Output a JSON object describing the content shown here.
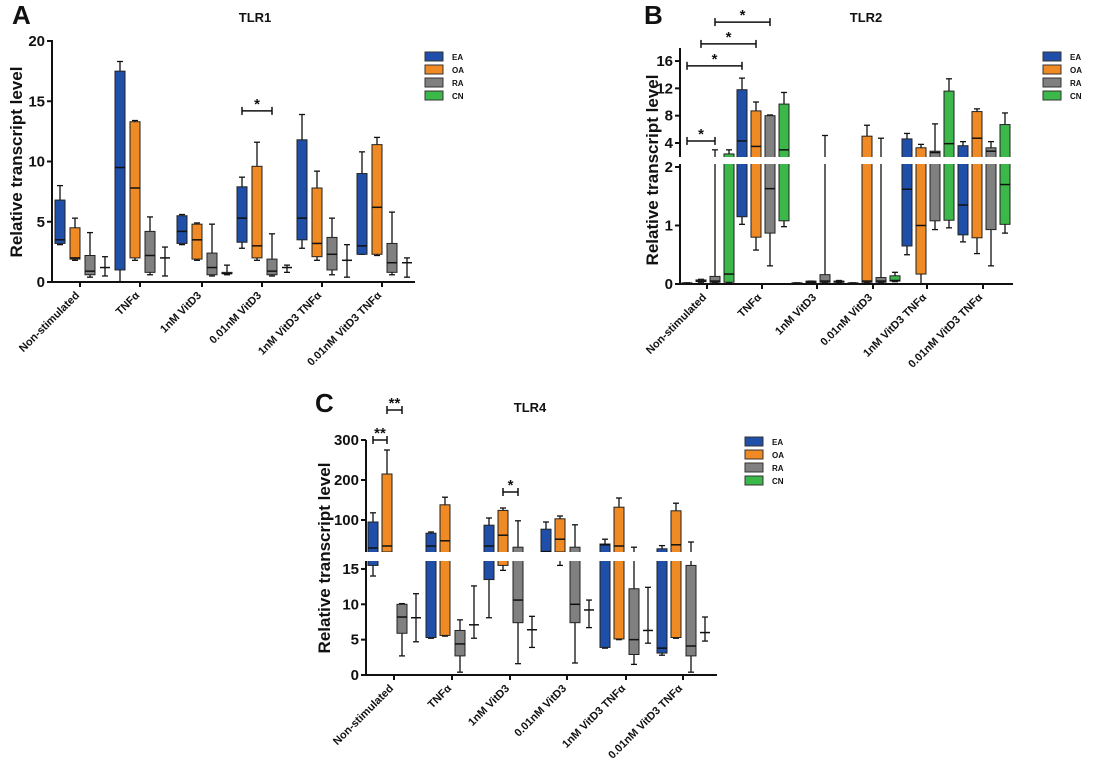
{
  "colors": {
    "EA": "#1f4fa8",
    "OA": "#f08a24",
    "RA": "#808080",
    "CN": "#3cb84a"
  },
  "chart_data": [
    {
      "panel": "A",
      "type": "box",
      "title": "TLR1",
      "ylabel": "Relative transcript level",
      "xlabel": "",
      "ylim": [
        0,
        20
      ],
      "yticks": [
        0,
        5,
        10,
        15,
        20
      ],
      "categories": [
        "Non-stimulated",
        "TNFα",
        "1nM VitD3",
        "0.01nM VitD3",
        "1nM VitD3 TNFα",
        "0.01nM VitD3 TNFα"
      ],
      "legend": [
        "EA",
        "OA",
        "RA",
        "CN"
      ],
      "legend_position": "top-right",
      "box_format": [
        "min",
        "q1",
        "median",
        "q3",
        "max"
      ],
      "series": [
        {
          "name": "EA",
          "values": [
            [
              3.1,
              3.2,
              3.5,
              6.8,
              8
            ],
            [
              0,
              1,
              9.5,
              17.5,
              18.3
            ],
            [
              3.1,
              3.2,
              4.2,
              5.5,
              5.6
            ],
            [
              2.8,
              3.3,
              5.3,
              7.9,
              8.7
            ],
            [
              2.8,
              3.5,
              5.3,
              11.8,
              13.9
            ],
            [
              2.3,
              2.3,
              3,
              9,
              10.8
            ]
          ]
        },
        {
          "name": "OA",
          "values": [
            [
              1.8,
              1.9,
              2,
              4.5,
              5.3
            ],
            [
              1.8,
              2,
              7.8,
              13.3,
              13.4
            ],
            [
              1.8,
              1.9,
              3.5,
              4.8,
              4.9
            ],
            [
              1.8,
              2,
              3,
              9.6,
              11.6
            ],
            [
              1.8,
              2.1,
              3.2,
              7.8,
              9.2
            ],
            [
              2.2,
              2.3,
              6.2,
              11.4,
              12
            ]
          ]
        },
        {
          "name": "RA",
          "values": [
            [
              0.4,
              0.6,
              0.9,
              2.2,
              4.1
            ],
            [
              0.6,
              0.8,
              2.2,
              4.2,
              5.4
            ],
            [
              0.5,
              0.6,
              1.2,
              2.4,
              4.8
            ],
            [
              0.5,
              0.6,
              0.9,
              1.9,
              4
            ],
            [
              0.6,
              1,
              2.3,
              3.7,
              5.3
            ],
            [
              0.6,
              0.8,
              1.6,
              3.2,
              5.8
            ]
          ]
        },
        {
          "name": "CN",
          "values": [
            [
              0.5,
              1.2,
              1.2,
              1.2,
              2.1
            ],
            [
              0.5,
              2,
              2,
              2,
              2.9
            ],
            [
              0.6,
              0.7,
              0.7,
              0.8,
              1.4
            ],
            [
              0.8,
              1.2,
              1.2,
              1.2,
              1.4
            ],
            [
              0.4,
              1.8,
              1.8,
              1.8,
              3.1
            ],
            [
              0.4,
              1.6,
              1.6,
              1.6,
              2
            ]
          ]
        }
      ],
      "significance": [
        {
          "from": [
            "0.01nM VitD3",
            "EA"
          ],
          "to": [
            "0.01nM VitD3",
            "RA"
          ],
          "level": 14.2,
          "label": "*"
        }
      ]
    },
    {
      "panel": "B",
      "type": "box",
      "title": "TLR2",
      "ylabel": "Relative transcript level",
      "xlabel": "",
      "ylim": [
        0,
        18
      ],
      "y_break": [
        2,
        2.3
      ],
      "yticks": [
        0,
        1,
        2,
        4,
        8,
        12,
        16
      ],
      "categories": [
        "Non-stimulated",
        "TNFα",
        "1nM VitD3",
        "0.01nM VitD3",
        "1nM VitD3 TNFα",
        "0.01nM VitD3 TNFα"
      ],
      "legend": [
        "EA",
        "OA",
        "RA",
        "CN"
      ],
      "legend_position": "top-right",
      "box_format": [
        "min",
        "q1",
        "median",
        "q3",
        "max"
      ],
      "series": [
        {
          "name": "EA",
          "values": [
            [
              0,
              0,
              0.01,
              0.02,
              0.02
            ],
            [
              1.02,
              1.15,
              4.3,
              11.8,
              13.5
            ],
            [
              0,
              0,
              0.01,
              0.02,
              0.02
            ],
            [
              0,
              0,
              0.01,
              0.02,
              0.02
            ],
            [
              0.5,
              0.65,
              1.62,
              4.6,
              5.4
            ],
            [
              0.72,
              0.84,
              1.35,
              3.6,
              4.2
            ]
          ]
        },
        {
          "name": "OA",
          "values": [
            [
              0.03,
              0.04,
              0.05,
              0.07,
              0.08
            ],
            [
              0.58,
              0.8,
              3.5,
              8.7,
              10
            ],
            [
              0.01,
              0.02,
              0.03,
              0.05,
              0.05
            ],
            [
              0.02,
              0.03,
              0.05,
              5,
              6.6
            ],
            [
              0,
              0.17,
              1,
              3.3,
              3.8
            ],
            [
              0.52,
              0.79,
              4.7,
              8.6,
              9
            ]
          ]
        },
        {
          "name": "RA",
          "values": [
            [
              0.02,
              0.03,
              0.05,
              0.13,
              3
            ],
            [
              0.31,
              0.87,
              1.63,
              8,
              8.1
            ],
            [
              0.02,
              0.03,
              0.05,
              0.16,
              5.1
            ],
            [
              0.02,
              0.03,
              0.05,
              0.11,
              4.7
            ],
            [
              0.93,
              1.08,
              2.6,
              2.8,
              6.8
            ],
            [
              0.31,
              0.93,
              2.8,
              3.3,
              4.2
            ]
          ]
        },
        {
          "name": "CN",
          "values": [
            [
              0.02,
              0.03,
              0.17,
              2.4,
              3
            ],
            [
              0.98,
              1.08,
              3,
              9.7,
              11.4
            ],
            [
              0.02,
              0.03,
              0.04,
              0.05,
              0.06
            ],
            [
              0.04,
              0.05,
              0.06,
              0.14,
              0.2
            ],
            [
              0.96,
              1.09,
              3.9,
              11.6,
              13.4
            ],
            [
              0.87,
              1.02,
              1.7,
              6.7,
              8.4
            ]
          ]
        }
      ],
      "significance": [
        {
          "from": [
            "Non-stimulated",
            "EA"
          ],
          "to": [
            "Non-stimulated",
            "RA"
          ],
          "level": 4.3,
          "label": "*"
        },
        {
          "from": [
            "Non-stimulated",
            "EA"
          ],
          "to": [
            "TNFα",
            "EA"
          ],
          "level": 15.3,
          "label": "*"
        },
        {
          "from": [
            "Non-stimulated",
            "OA"
          ],
          "to": [
            "TNFα",
            "OA"
          ],
          "level": 18.5,
          "label": "*"
        },
        {
          "from": [
            "Non-stimulated",
            "RA"
          ],
          "to": [
            "TNFα",
            "RA"
          ],
          "level": 21.7,
          "label": "*"
        }
      ]
    },
    {
      "panel": "C",
      "type": "box",
      "title": "TLR4",
      "ylabel": "Relative transcript level",
      "xlabel": "",
      "ylim": [
        0,
        300
      ],
      "y_break": [
        16.5,
        20
      ],
      "yticks": [
        0,
        5,
        10,
        15,
        100,
        200,
        300
      ],
      "categories": [
        "Non-stimulated",
        "TNFα",
        "1nM VitD3",
        "0.01nM VitD3",
        "1nM VitD3 TNFα",
        "0.01nM VitD3 TNFα"
      ],
      "legend": [
        "EA",
        "OA",
        "RA",
        "CN"
      ],
      "legend_position": "top-right",
      "box_format": [
        "min",
        "q1",
        "median",
        "q3",
        "max"
      ],
      "series": [
        {
          "name": "EA",
          "values": [
            [
              14,
              15.5,
              30,
              95,
              118
            ],
            [
              5.2,
              5.3,
              35,
              67,
              70
            ],
            [
              8.1,
              13.5,
              35,
              87,
              105
            ],
            [
              20,
              20,
              21,
              77,
              95
            ],
            [
              3.8,
              3.9,
              38,
              40,
              52
            ],
            [
              2.8,
              3.1,
              3.8,
              28,
              36
            ]
          ]
        },
        {
          "name": "OA",
          "values": [
            [
              20,
              20,
              35,
              215,
              275
            ],
            [
              5.5,
              5.6,
              48,
              138,
              157
            ],
            [
              14.8,
              15.5,
              62,
              124,
              130
            ],
            [
              15.5,
              20,
              52,
              103,
              110
            ],
            [
              5,
              5.1,
              35,
              132,
              155
            ],
            [
              5.2,
              5.3,
              38,
              123,
              142
            ]
          ]
        },
        {
          "name": "RA",
          "values": [
            [
              2.7,
              5.9,
              8.2,
              10,
              10.1
            ],
            [
              0.4,
              2.7,
              4.4,
              6.3,
              7.8
            ],
            [
              1.6,
              7.4,
              10.6,
              32,
              98
            ],
            [
              1.7,
              7.4,
              10,
              32,
              88
            ],
            [
              1.5,
              2.9,
              5,
              12.2,
              32
            ],
            [
              0.4,
              2.7,
              4.1,
              15.5,
              45
            ]
          ]
        },
        {
          "name": "CN",
          "values": [
            [
              4.7,
              8.1,
              8.1,
              8.1,
              11.5
            ],
            [
              5.2,
              7.1,
              7.1,
              7.1,
              12.6
            ],
            [
              3.9,
              6.4,
              6.4,
              6.4,
              8.3
            ],
            [
              6.7,
              9.2,
              9.2,
              9.2,
              10.6
            ],
            [
              4.5,
              6.3,
              6.3,
              6.3,
              12.4
            ],
            [
              4.8,
              6,
              6,
              6,
              8.2
            ]
          ]
        }
      ],
      "significance": [
        {
          "from": [
            "Non-stimulated",
            "EA"
          ],
          "to": [
            "Non-stimulated",
            "OA"
          ],
          "level": 300,
          "label": "**"
        },
        {
          "from": [
            "Non-stimulated",
            "OA"
          ],
          "to": [
            "Non-stimulated",
            "RA"
          ],
          "level": 375,
          "label": "**"
        },
        {
          "from": [
            "1nM VitD3",
            "OA"
          ],
          "to": [
            "1nM VitD3",
            "RA"
          ],
          "level": 170,
          "label": "*"
        }
      ]
    }
  ]
}
